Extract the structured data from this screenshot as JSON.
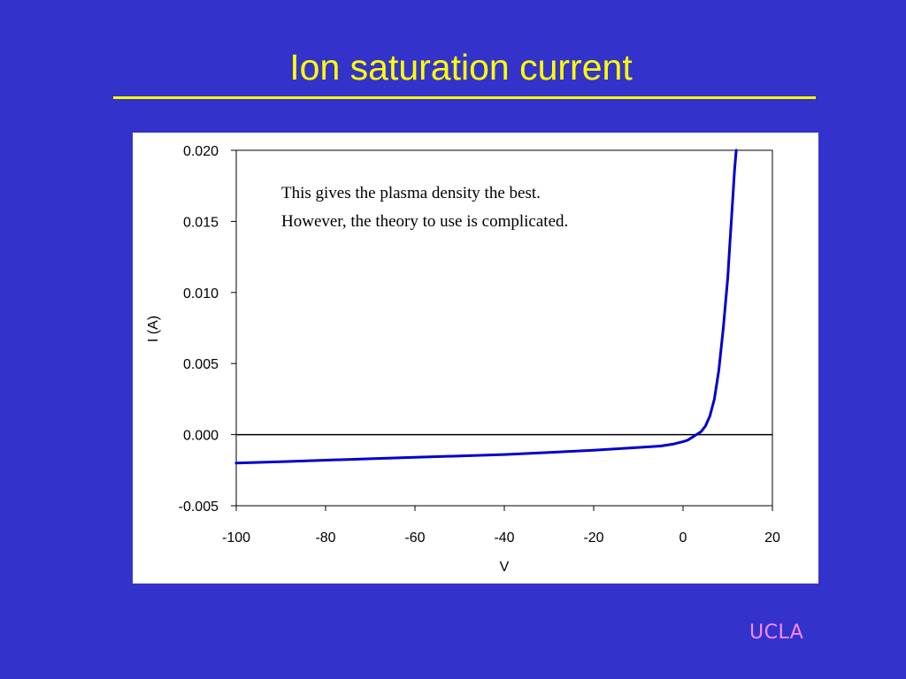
{
  "slide": {
    "title": "Ion saturation current",
    "title_color": "#ffff00",
    "background_color": "#3333cc",
    "footer_logo": "UCLA",
    "footer_logo_color": "#ff88ff"
  },
  "chart_data": {
    "type": "line",
    "title": "",
    "xlabel": "V",
    "ylabel": "I (A)",
    "xlim": [
      -100,
      20
    ],
    "ylim": [
      -0.005,
      0.02
    ],
    "x_ticks": [
      "-100",
      "-80",
      "-60",
      "-40",
      "-20",
      "0",
      "20"
    ],
    "y_ticks": [
      "-0.005",
      "0.000",
      "0.005",
      "0.010",
      "0.015",
      "0.020"
    ],
    "grid": false,
    "legend": "none",
    "zero_line": true,
    "annotation": [
      "This gives the plasma density the best.",
      "However, the theory to use is complicated."
    ],
    "series": [
      {
        "color": "#0000cc",
        "x": [
          -100,
          -90,
          -80,
          -70,
          -60,
          -50,
          -40,
          -30,
          -20,
          -10,
          -5,
          -2,
          0,
          1,
          2,
          3,
          4,
          5,
          6,
          7,
          8,
          9,
          10,
          10.5,
          11,
          11.5,
          11.9
        ],
        "y": [
          -0.002,
          -0.0019,
          -0.0018,
          -0.0017,
          -0.0016,
          -0.0015,
          -0.0014,
          -0.00125,
          -0.0011,
          -0.0009,
          -0.0008,
          -0.00065,
          -0.0005,
          -0.0004,
          -0.0002,
          0.0,
          0.0002,
          0.0006,
          0.0013,
          0.0025,
          0.0045,
          0.0075,
          0.011,
          0.0135,
          0.016,
          0.0185,
          0.02
        ]
      }
    ]
  }
}
